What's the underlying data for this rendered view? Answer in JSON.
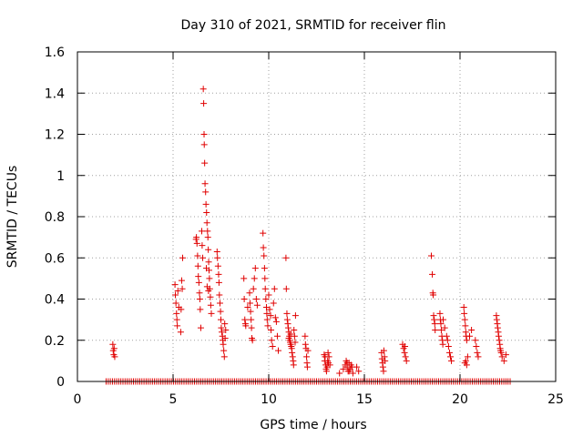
{
  "chart_data": {
    "type": "scatter",
    "title": "Day 310 of 2021, SRMTID for receiver flin",
    "xlabel": "GPS time / hours",
    "ylabel": "SRMTID / TECUs",
    "xlim": [
      0,
      25
    ],
    "ylim": [
      0,
      1.6
    ],
    "xticks": [
      0,
      5,
      10,
      15,
      20,
      25
    ],
    "xtick_labels": [
      "0",
      "5",
      "10",
      "15",
      "20",
      "25"
    ],
    "yticks": [
      0,
      0.2,
      0.4,
      0.6,
      0.8,
      1.0,
      1.2,
      1.4,
      1.6
    ],
    "ytick_labels": [
      "0",
      "0.2",
      "0.4",
      "0.6",
      "0.8",
      "1",
      "1.2",
      "1.4",
      "1.6"
    ],
    "grid": true,
    "marker": "+",
    "color": "#e00000",
    "series": [
      {
        "name": "SRMTID",
        "points": [
          [
            1.85,
            0.18
          ],
          [
            1.87,
            0.15
          ],
          [
            1.9,
            0.13
          ],
          [
            1.92,
            0.16
          ],
          [
            1.95,
            0.12
          ],
          [
            5.1,
            0.47
          ],
          [
            5.12,
            0.42
          ],
          [
            5.15,
            0.38
          ],
          [
            5.18,
            0.33
          ],
          [
            5.2,
            0.3
          ],
          [
            5.22,
            0.27
          ],
          [
            5.25,
            0.44
          ],
          [
            5.3,
            0.36
          ],
          [
            5.4,
            0.24
          ],
          [
            5.42,
            0.35
          ],
          [
            5.45,
            0.49
          ],
          [
            5.5,
            0.6
          ],
          [
            5.48,
            0.45
          ],
          [
            6.2,
            0.69
          ],
          [
            6.22,
            0.7
          ],
          [
            6.25,
            0.67
          ],
          [
            6.28,
            0.61
          ],
          [
            6.3,
            0.56
          ],
          [
            6.32,
            0.51
          ],
          [
            6.35,
            0.48
          ],
          [
            6.38,
            0.43
          ],
          [
            6.4,
            0.4
          ],
          [
            6.42,
            0.35
          ],
          [
            6.45,
            0.26
          ],
          [
            6.5,
            0.73
          ],
          [
            6.52,
            0.66
          ],
          [
            6.55,
            0.6
          ],
          [
            6.58,
            1.42
          ],
          [
            6.6,
            1.35
          ],
          [
            6.62,
            1.2
          ],
          [
            6.63,
            1.15
          ],
          [
            6.65,
            1.06
          ],
          [
            6.67,
            0.96
          ],
          [
            6.7,
            0.92
          ],
          [
            6.72,
            0.86
          ],
          [
            6.75,
            0.82
          ],
          [
            6.77,
            0.77
          ],
          [
            6.8,
            0.73
          ],
          [
            6.82,
            0.7
          ],
          [
            6.84,
            0.64
          ],
          [
            6.86,
            0.58
          ],
          [
            6.88,
            0.54
          ],
          [
            6.9,
            0.5
          ],
          [
            6.92,
            0.45
          ],
          [
            6.95,
            0.41
          ],
          [
            6.97,
            0.37
          ],
          [
            7.0,
            0.33
          ],
          [
            6.74,
            0.55
          ],
          [
            6.78,
            0.46
          ],
          [
            6.85,
            0.44
          ],
          [
            7.3,
            0.63
          ],
          [
            7.32,
            0.6
          ],
          [
            7.35,
            0.56
          ],
          [
            7.38,
            0.52
          ],
          [
            7.4,
            0.48
          ],
          [
            7.42,
            0.42
          ],
          [
            7.45,
            0.38
          ],
          [
            7.48,
            0.34
          ],
          [
            7.5,
            0.3
          ],
          [
            7.52,
            0.26
          ],
          [
            7.55,
            0.24
          ],
          [
            7.58,
            0.22
          ],
          [
            7.6,
            0.2
          ],
          [
            7.62,
            0.18
          ],
          [
            7.65,
            0.15
          ],
          [
            7.68,
            0.12
          ],
          [
            7.7,
            0.28
          ],
          [
            7.72,
            0.21
          ],
          [
            7.75,
            0.25
          ],
          [
            8.7,
            0.5
          ],
          [
            8.72,
            0.4
          ],
          [
            8.75,
            0.3
          ],
          [
            8.78,
            0.28
          ],
          [
            8.8,
            0.27
          ],
          [
            8.9,
            0.36
          ],
          [
            9.0,
            0.43
          ],
          [
            9.02,
            0.38
          ],
          [
            9.05,
            0.34
          ],
          [
            9.08,
            0.3
          ],
          [
            9.1,
            0.26
          ],
          [
            9.12,
            0.21
          ],
          [
            9.15,
            0.2
          ],
          [
            9.2,
            0.45
          ],
          [
            9.25,
            0.5
          ],
          [
            9.3,
            0.55
          ],
          [
            9.35,
            0.4
          ],
          [
            9.4,
            0.37
          ],
          [
            9.7,
            0.72
          ],
          [
            9.72,
            0.65
          ],
          [
            9.75,
            0.61
          ],
          [
            9.78,
            0.55
          ],
          [
            9.8,
            0.5
          ],
          [
            9.82,
            0.45
          ],
          [
            9.85,
            0.4
          ],
          [
            9.88,
            0.36
          ],
          [
            9.9,
            0.33
          ],
          [
            9.92,
            0.3
          ],
          [
            9.95,
            0.27
          ],
          [
            10.0,
            0.42
          ],
          [
            10.05,
            0.35
          ],
          [
            10.1,
            0.32
          ],
          [
            10.12,
            0.25
          ],
          [
            10.15,
            0.2
          ],
          [
            10.2,
            0.17
          ],
          [
            10.25,
            0.38
          ],
          [
            10.3,
            0.45
          ],
          [
            10.35,
            0.31
          ],
          [
            10.4,
            0.29
          ],
          [
            10.45,
            0.22
          ],
          [
            10.5,
            0.15
          ],
          [
            10.9,
            0.6
          ],
          [
            10.92,
            0.45
          ],
          [
            10.95,
            0.33
          ],
          [
            10.97,
            0.3
          ],
          [
            11.0,
            0.28
          ],
          [
            11.02,
            0.26
          ],
          [
            11.05,
            0.24
          ],
          [
            11.08,
            0.22
          ],
          [
            11.1,
            0.2
          ],
          [
            11.12,
            0.19
          ],
          [
            11.15,
            0.18
          ],
          [
            11.18,
            0.17
          ],
          [
            11.2,
            0.16
          ],
          [
            11.22,
            0.14
          ],
          [
            11.25,
            0.12
          ],
          [
            11.28,
            0.1
          ],
          [
            11.3,
            0.08
          ],
          [
            11.32,
            0.25
          ],
          [
            11.35,
            0.22
          ],
          [
            11.38,
            0.19
          ],
          [
            11.4,
            0.32
          ],
          [
            11.05,
            0.21
          ],
          [
            11.15,
            0.23
          ],
          [
            11.9,
            0.22
          ],
          [
            11.92,
            0.18
          ],
          [
            11.95,
            0.16
          ],
          [
            11.98,
            0.12
          ],
          [
            12.0,
            0.09
          ],
          [
            12.02,
            0.07
          ],
          [
            12.05,
            0.15
          ],
          [
            12.9,
            0.13
          ],
          [
            12.92,
            0.1
          ],
          [
            12.95,
            0.12
          ],
          [
            12.98,
            0.08
          ],
          [
            13.0,
            0.06
          ],
          [
            13.02,
            0.05
          ],
          [
            13.05,
            0.07
          ],
          [
            13.08,
            0.1
          ],
          [
            13.1,
            0.14
          ],
          [
            13.12,
            0.09
          ],
          [
            13.15,
            0.12
          ],
          [
            13.2,
            0.08
          ],
          [
            13.7,
            0.04
          ],
          [
            13.9,
            0.06
          ],
          [
            14.0,
            0.08
          ],
          [
            14.05,
            0.1
          ],
          [
            14.1,
            0.07
          ],
          [
            14.15,
            0.05
          ],
          [
            14.2,
            0.09
          ],
          [
            14.25,
            0.06
          ],
          [
            14.3,
            0.08
          ],
          [
            14.35,
            0.07
          ],
          [
            14.4,
            0.04
          ],
          [
            14.2,
            0.05
          ],
          [
            14.1,
            0.09
          ],
          [
            14.6,
            0.07
          ],
          [
            14.7,
            0.05
          ],
          [
            15.9,
            0.14
          ],
          [
            15.92,
            0.11
          ],
          [
            15.95,
            0.09
          ],
          [
            15.97,
            0.07
          ],
          [
            16.0,
            0.05
          ],
          [
            16.02,
            0.15
          ],
          [
            16.05,
            0.12
          ],
          [
            16.08,
            0.1
          ],
          [
            17.0,
            0.18
          ],
          [
            17.05,
            0.16
          ],
          [
            17.1,
            0.14
          ],
          [
            17.15,
            0.12
          ],
          [
            17.2,
            0.1
          ],
          [
            17.12,
            0.17
          ],
          [
            18.5,
            0.61
          ],
          [
            18.55,
            0.52
          ],
          [
            18.58,
            0.43
          ],
          [
            18.6,
            0.42
          ],
          [
            18.62,
            0.32
          ],
          [
            18.65,
            0.3
          ],
          [
            18.68,
            0.28
          ],
          [
            18.7,
            0.25
          ],
          [
            18.95,
            0.33
          ],
          [
            18.97,
            0.3
          ],
          [
            19.0,
            0.28
          ],
          [
            19.02,
            0.25
          ],
          [
            19.05,
            0.22
          ],
          [
            19.08,
            0.2
          ],
          [
            19.1,
            0.18
          ],
          [
            19.12,
            0.3
          ],
          [
            19.2,
            0.26
          ],
          [
            19.3,
            0.22
          ],
          [
            19.35,
            0.2
          ],
          [
            19.4,
            0.17
          ],
          [
            19.45,
            0.14
          ],
          [
            19.5,
            0.12
          ],
          [
            19.55,
            0.1
          ],
          [
            20.2,
            0.36
          ],
          [
            20.22,
            0.33
          ],
          [
            20.25,
            0.3
          ],
          [
            20.28,
            0.27
          ],
          [
            20.3,
            0.24
          ],
          [
            20.32,
            0.22
          ],
          [
            20.35,
            0.2
          ],
          [
            20.3,
            0.1
          ],
          [
            20.35,
            0.08
          ],
          [
            20.25,
            0.09
          ],
          [
            20.4,
            0.12
          ],
          [
            20.5,
            0.22
          ],
          [
            20.6,
            0.25
          ],
          [
            20.8,
            0.2
          ],
          [
            20.85,
            0.17
          ],
          [
            20.9,
            0.14
          ],
          [
            20.95,
            0.12
          ],
          [
            21.9,
            0.32
          ],
          [
            21.92,
            0.3
          ],
          [
            21.95,
            0.28
          ],
          [
            21.97,
            0.26
          ],
          [
            22.0,
            0.24
          ],
          [
            22.02,
            0.22
          ],
          [
            22.05,
            0.2
          ],
          [
            22.08,
            0.18
          ],
          [
            22.1,
            0.16
          ],
          [
            22.12,
            0.15
          ],
          [
            22.15,
            0.14
          ],
          [
            22.2,
            0.12
          ],
          [
            22.3,
            0.1
          ],
          [
            22.4,
            0.13
          ]
        ]
      },
      {
        "name": "zero baseline",
        "x_range": [
          1.5,
          22.7
        ],
        "step": 0.11,
        "y": 0
      }
    ]
  }
}
